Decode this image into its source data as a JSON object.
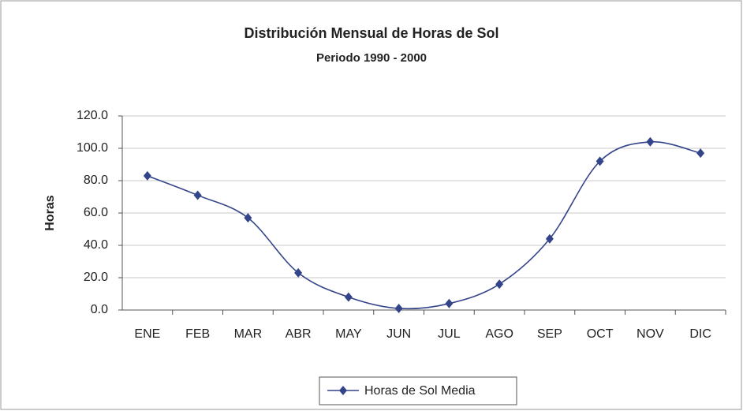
{
  "chart_data": {
    "type": "line",
    "title": "Distribución Mensual de Horas de Sol",
    "subtitle": "Periodo 1990 - 2000",
    "y_label": "Horas",
    "categories": [
      "ENE",
      "FEB",
      "MAR",
      "ABR",
      "MAY",
      "JUN",
      "JUL",
      "AGO",
      "SEP",
      "OCT",
      "NOV",
      "DIC"
    ],
    "series": [
      {
        "name": "Horas de Sol Media",
        "color": "#34448a",
        "values": [
          83,
          71,
          57,
          23,
          8,
          1,
          4,
          16,
          44,
          92,
          104,
          97
        ]
      }
    ],
    "ylim": [
      0,
      120
    ],
    "yticks": [
      {
        "value": 0,
        "label": "0.0"
      },
      {
        "value": 20,
        "label": "20.0"
      },
      {
        "value": 40,
        "label": "40.0"
      },
      {
        "value": 60,
        "label": "60.0"
      },
      {
        "value": 80,
        "label": "80.0"
      },
      {
        "value": 100,
        "label": "100.0"
      },
      {
        "value": 120,
        "label": "120.0"
      }
    ],
    "grid": true,
    "legend": "bottom"
  }
}
